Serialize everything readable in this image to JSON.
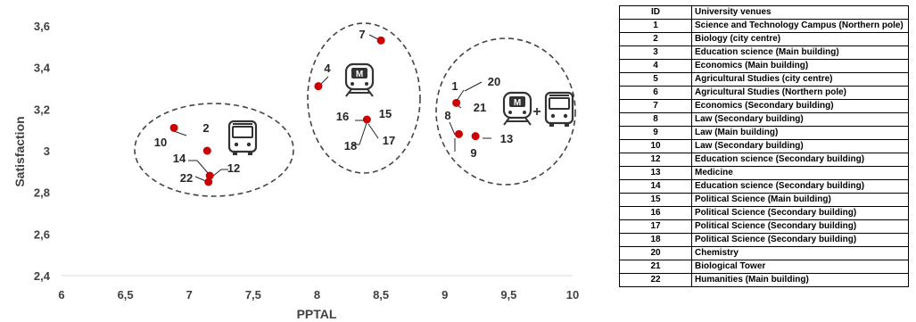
{
  "chart_data": {
    "type": "scatter",
    "xlabel": "PPTAL",
    "ylabel": "Satisfaction",
    "xlim": [
      6,
      10
    ],
    "ylim": [
      2.4,
      3.6
    ],
    "x_ticks": [
      "6",
      "6,5",
      "7",
      "7,5",
      "8",
      "8,5",
      "9",
      "9,5",
      "10"
    ],
    "y_ticks": [
      "2,4",
      "2,6",
      "2,8",
      "3",
      "3,2",
      "3,4",
      "3,6"
    ],
    "point_color": "#cc0000",
    "points": [
      {
        "label": "7",
        "x": 8.5,
        "y": 3.53
      },
      {
        "label": "4",
        "x": 8.01,
        "y": 3.31
      },
      {
        "label": "1 / 20 / 21",
        "x": 9.09,
        "y": 3.23
      },
      {
        "label": "16 / 15 / 18 / 17",
        "x": 8.39,
        "y": 3.15
      },
      {
        "label": "10",
        "x": 6.88,
        "y": 3.11
      },
      {
        "label": "8 / 9",
        "x": 9.11,
        "y": 3.08
      },
      {
        "label": "13",
        "x": 9.24,
        "y": 3.07
      },
      {
        "label": "2",
        "x": 7.14,
        "y": 3.0
      },
      {
        "label": "14 / 12",
        "x": 7.16,
        "y": 2.88
      },
      {
        "label": "22",
        "x": 7.15,
        "y": 2.85
      }
    ],
    "annotations": [
      "1",
      "2",
      "4",
      "7",
      "8",
      "9",
      "10",
      "12",
      "13",
      "14",
      "15",
      "16",
      "17",
      "18",
      "20",
      "21",
      "22",
      "+"
    ],
    "clusters": [
      {
        "mode": "bus-icon"
      },
      {
        "mode": "metro-icon"
      },
      {
        "mode": "metro-icon + bus-icon"
      }
    ]
  },
  "table": {
    "headers": [
      "ID",
      "University venues"
    ],
    "rows": [
      [
        "1",
        "Science and Technology Campus (Northern pole)"
      ],
      [
        "2",
        "Biology (city centre)"
      ],
      [
        "3",
        "Education science (Main building)"
      ],
      [
        "4",
        "Economics (Main building)"
      ],
      [
        "5",
        "Agricultural Studies (city centre)"
      ],
      [
        "6",
        "Agricultural Studies (Northern pole)"
      ],
      [
        "7",
        "Economics (Secondary building)"
      ],
      [
        "8",
        "Law (Secondary building)"
      ],
      [
        "9",
        "Law (Main building)"
      ],
      [
        "10",
        "Law (Secondary building)"
      ],
      [
        "12",
        "Education science (Secondary building)"
      ],
      [
        "13",
        "Medicine"
      ],
      [
        "14",
        "Education science (Secondary building)"
      ],
      [
        "15",
        "Political Science (Main building)"
      ],
      [
        "16",
        "Political Science (Secondary building)"
      ],
      [
        "17",
        "Political Science (Secondary building)"
      ],
      [
        "18",
        "Political Science (Secondary building)"
      ],
      [
        "20",
        "Chemistry"
      ],
      [
        "21",
        "Biological Tower"
      ],
      [
        "22",
        "Humanities (Main building)"
      ]
    ]
  }
}
